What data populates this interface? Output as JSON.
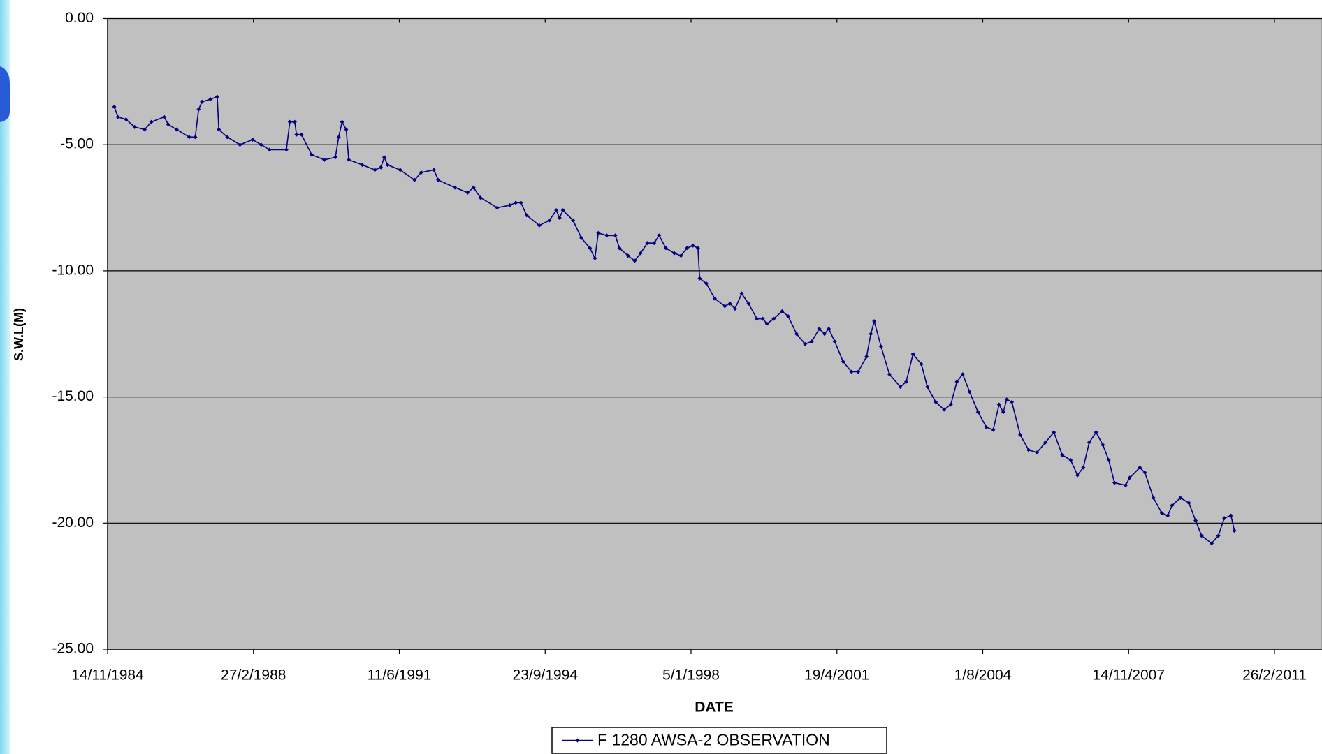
{
  "chart_data": {
    "type": "line",
    "xlabel": "DATE",
    "ylabel": "S.W.L(M)",
    "grid": true,
    "legend": "bottom",
    "xlim": [
      "1984-11-14",
      "2011-02-26"
    ],
    "xticks": [
      {
        "value": "1984-11-14",
        "label": "14/11/1984"
      },
      {
        "value": "1988-02-27",
        "label": "27/2/1988"
      },
      {
        "value": "1991-06-11",
        "label": "11/6/1991"
      },
      {
        "value": "1994-09-23",
        "label": "23/9/1994"
      },
      {
        "value": "1998-01-05",
        "label": "5/1/1998"
      },
      {
        "value": "2001-04-19",
        "label": "19/4/2001"
      },
      {
        "value": "2004-08-01",
        "label": "1/8/2004"
      },
      {
        "value": "2007-11-14",
        "label": "14/11/2007"
      },
      {
        "value": "2011-02-26",
        "label": "26/2/2011"
      }
    ],
    "ylim": [
      -25,
      0
    ],
    "yticks": [
      {
        "value": 0,
        "label": "0.00"
      },
      {
        "value": -5,
        "label": "-5.00"
      },
      {
        "value": -10,
        "label": "-10.00"
      },
      {
        "value": -15,
        "label": "-15.00"
      },
      {
        "value": -20,
        "label": "-20.00"
      },
      {
        "value": -25,
        "label": "-25.00"
      }
    ],
    "x": [
      "1985-01-08",
      "1985-02-06",
      "1985-04-15",
      "1985-06-24",
      "1985-09-15",
      "1985-11-09",
      "1986-02-22",
      "1986-03-28",
      "1986-06-05",
      "1986-09-17",
      "1986-11-05",
      "1986-12-03",
      "1986-12-31",
      "1987-03-10",
      "1987-05-05",
      "1987-05-18",
      "1987-07-27",
      "1987-11-08",
      "1988-02-20",
      "1988-04-30",
      "1988-07-08",
      "1988-11-24",
      "1988-12-22",
      "1989-02-01",
      "1989-02-15",
      "1989-03-28",
      "1989-06-20",
      "1989-10-02",
      "1990-01-01",
      "1990-01-28",
      "1990-02-25",
      "1990-03-31",
      "1990-04-21",
      "1990-08-10",
      "1990-11-22",
      "1991-01-10",
      "1991-02-07",
      "1991-03-06",
      "1991-06-18",
      "1991-10-14",
      "1991-12-08",
      "1992-03-22",
      "1992-04-26",
      "1992-09-11",
      "1992-12-24",
      "1993-02-11",
      "1993-04-08",
      "1993-08-24",
      "1993-12-06",
      "1994-01-24",
      "1994-03-07",
      "1994-04-24",
      "1994-08-06",
      "1994-10-28",
      "1994-12-23",
      "1995-01-19",
      "1995-02-16",
      "1995-05-10",
      "1995-07-18",
      "1995-09-26",
      "1995-11-06",
      "1995-12-04",
      "1996-02-12",
      "1996-04-22",
      "1996-05-26",
      "1996-08-04",
      "1996-09-28",
      "1996-11-16",
      "1997-01-10",
      "1997-03-07",
      "1997-04-17",
      "1997-06-12",
      "1997-08-20",
      "1997-10-14",
      "1997-12-02",
      "1998-01-20",
      "1998-03-03",
      "1998-03-17",
      "1998-05-11",
      "1998-07-19",
      "1998-10-10",
      "1998-11-21",
      "1999-01-02",
      "1999-02-26",
      "1999-04-23",
      "1999-07-01",
      "1999-08-18",
      "1999-09-22",
      "1999-11-16",
      "2000-01-25",
      "2000-03-14",
      "2000-05-22",
      "2000-07-31",
      "2000-09-24",
      "2000-11-25",
      "2001-01-07",
      "2001-02-11",
      "2001-04-01",
      "2001-06-09",
      "2001-08-17",
      "2001-10-11",
      "2001-12-19",
      "2002-01-23",
      "2002-02-20",
      "2002-04-17",
      "2002-06-25",
      "2002-09-23",
      "2002-11-10",
      "2003-01-05",
      "2003-03-15",
      "2003-05-03",
      "2003-07-11",
      "2003-09-18",
      "2003-11-12",
      "2004-01-01",
      "2004-02-18",
      "2004-04-15",
      "2004-06-23",
      "2004-08-31",
      "2004-10-26",
      "2004-12-13",
      "2005-01-17",
      "2005-02-14",
      "2005-03-28",
      "2005-06-05",
      "2005-08-13",
      "2005-10-21",
      "2005-12-30",
      "2006-03-09",
      "2006-05-17",
      "2006-07-25",
      "2006-09-19",
      "2006-11-06",
      "2006-12-25",
      "2007-02-19",
      "2007-04-16",
      "2007-06-03",
      "2007-07-21",
      "2007-10-20",
      "2007-11-23",
      "2008-02-14",
      "2008-03-27",
      "2008-06-05",
      "2008-08-13",
      "2008-10-01",
      "2008-11-05",
      "2009-01-13",
      "2009-03-24",
      "2009-05-18",
      "2009-07-06",
      "2009-09-27",
      "2009-11-21",
      "2010-01-09",
      "2010-03-05",
      "2010-04-02"
    ],
    "series": [
      {
        "name": "F 1280 AWSA-2 OBSERVATION",
        "color": "#000080",
        "values": [
          -3.5,
          -3.9,
          -4.0,
          -4.3,
          -4.4,
          -4.1,
          -3.9,
          -4.2,
          -4.4,
          -4.7,
          -4.7,
          -3.6,
          -3.3,
          -3.2,
          -3.1,
          -4.4,
          -4.7,
          -5.0,
          -4.8,
          -5.0,
          -5.2,
          -5.2,
          -4.1,
          -4.1,
          -4.6,
          -4.6,
          -5.4,
          -5.6,
          -5.5,
          -4.7,
          -4.1,
          -4.4,
          -5.6,
          -5.8,
          -6.0,
          -5.9,
          -5.5,
          -5.8,
          -6.0,
          -6.4,
          -6.1,
          -6.0,
          -6.4,
          -6.7,
          -6.9,
          -6.7,
          -7.1,
          -7.5,
          -7.4,
          -7.3,
          -7.3,
          -7.8,
          -8.2,
          -8.0,
          -7.6,
          -7.9,
          -7.6,
          -8.0,
          -8.7,
          -9.1,
          -9.5,
          -8.5,
          -8.6,
          -8.6,
          -9.1,
          -9.4,
          -9.6,
          -9.3,
          -8.9,
          -8.9,
          -8.6,
          -9.1,
          -9.3,
          -9.4,
          -9.1,
          -9.0,
          -9.1,
          -10.3,
          -10.5,
          -11.1,
          -11.4,
          -11.3,
          -11.5,
          -10.9,
          -11.3,
          -11.9,
          -11.9,
          -12.1,
          -11.9,
          -11.6,
          -11.8,
          -12.5,
          -12.9,
          -12.8,
          -12.3,
          -12.5,
          -12.3,
          -12.8,
          -13.6,
          -14.0,
          -14.0,
          -13.4,
          -12.5,
          -12.0,
          -13.0,
          -14.1,
          -14.6,
          -14.4,
          -13.3,
          -13.7,
          -14.6,
          -15.2,
          -15.5,
          -15.3,
          -14.4,
          -14.1,
          -14.8,
          -15.6,
          -16.2,
          -16.3,
          -15.3,
          -15.6,
          -15.1,
          -15.2,
          -16.5,
          -17.1,
          -17.2,
          -16.8,
          -16.4,
          -17.3,
          -17.5,
          -18.1,
          -17.8,
          -16.8,
          -16.4,
          -16.9,
          -17.5,
          -18.4,
          -18.5,
          -18.2,
          -17.8,
          -18.0,
          -19.0,
          -19.6,
          -19.7,
          -19.3,
          -19.0,
          -19.2,
          -19.9,
          -20.5,
          -20.8,
          -20.5,
          -19.8,
          -19.7,
          -20.3
        ]
      }
    ]
  }
}
